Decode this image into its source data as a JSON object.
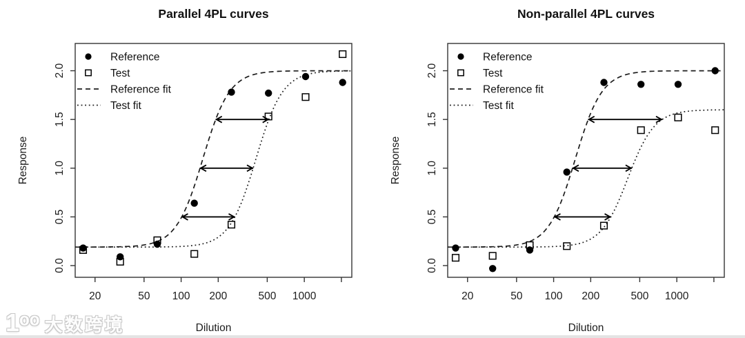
{
  "watermark": {
    "logo_text": "1ᵒᵒ",
    "brand_text": "大数跨境"
  },
  "chart_data": [
    {
      "type": "scatter",
      "title": "Parallel 4PL curves",
      "xlabel": "Dilution",
      "ylabel": "Response",
      "x_scale": "log10",
      "xlim": [
        13.8,
        2430
      ],
      "ylim": [
        -0.12,
        2.28
      ],
      "grid": false,
      "x_ticks": [
        {
          "value": 20,
          "label": "20"
        },
        {
          "value": 50,
          "label": "50"
        },
        {
          "value": 100,
          "label": "100"
        },
        {
          "value": 200,
          "label": "200"
        },
        {
          "value": 500,
          "label": "500"
        },
        {
          "value": 1000,
          "label": "1000"
        },
        {
          "value": 2000,
          "label": ""
        }
      ],
      "y_ticks": [
        {
          "value": 0,
          "label": "0.0"
        },
        {
          "value": 0.5,
          "label": "0.5"
        },
        {
          "value": 1,
          "label": "1.0"
        },
        {
          "value": 1.5,
          "label": "1.5"
        },
        {
          "value": 2,
          "label": "2.0"
        }
      ],
      "legend": {
        "position": "top-left",
        "entries": [
          {
            "label": "Reference",
            "symbol": "filled-circle"
          },
          {
            "label": "Test",
            "symbol": "open-square"
          },
          {
            "label": "Reference fit",
            "symbol": "dashed-line"
          },
          {
            "label": "Test fit",
            "symbol": "dotted-line"
          }
        ]
      },
      "series": [
        {
          "name": "Reference",
          "marker": "filled-circle",
          "points": [
            [
              16,
              0.18
            ],
            [
              32,
              0.09
            ],
            [
              64,
              0.22
            ],
            [
              128,
              0.64
            ],
            [
              256,
              1.78
            ],
            [
              512,
              1.77
            ],
            [
              1024,
              1.94
            ],
            [
              2048,
              1.88
            ]
          ]
        },
        {
          "name": "Test",
          "marker": "open-square",
          "points": [
            [
              16,
              0.16
            ],
            [
              32,
              0.04
            ],
            [
              64,
              0.26
            ],
            [
              128,
              0.12
            ],
            [
              256,
              0.42
            ],
            [
              512,
              1.53
            ],
            [
              1024,
              1.73
            ],
            [
              2048,
              2.17
            ]
          ]
        }
      ],
      "fit_curves": [
        {
          "name": "Reference fit",
          "line_style": "dashed",
          "model": "4PL",
          "bottom": 0.19,
          "top": 2.0,
          "ec50": 150,
          "hill": 4
        },
        {
          "name": "Test fit",
          "line_style": "dotted",
          "model": "4PL",
          "bottom": 0.19,
          "top": 2.0,
          "ec50": 405,
          "hill": 4
        }
      ],
      "shift_arrows_at_response": [
        0.5,
        1.0,
        1.5
      ],
      "colors": {
        "foreground": "#000000",
        "background": "#ffffff"
      }
    },
    {
      "type": "scatter",
      "title": "Non-parallel 4PL curves",
      "xlabel": "Dilution",
      "ylabel": "Response",
      "x_scale": "log10",
      "xlim": [
        13.8,
        2430
      ],
      "ylim": [
        -0.12,
        2.28
      ],
      "grid": false,
      "x_ticks": [
        {
          "value": 20,
          "label": "20"
        },
        {
          "value": 50,
          "label": "50"
        },
        {
          "value": 100,
          "label": "100"
        },
        {
          "value": 200,
          "label": "200"
        },
        {
          "value": 500,
          "label": "500"
        },
        {
          "value": 1000,
          "label": "1000"
        },
        {
          "value": 2000,
          "label": ""
        }
      ],
      "y_ticks": [
        {
          "value": 0,
          "label": "0.0"
        },
        {
          "value": 0.5,
          "label": "0.5"
        },
        {
          "value": 1,
          "label": "1.0"
        },
        {
          "value": 1.5,
          "label": "1.5"
        },
        {
          "value": 2,
          "label": "2.0"
        }
      ],
      "legend": {
        "position": "top-left",
        "entries": [
          {
            "label": "Reference",
            "symbol": "filled-circle"
          },
          {
            "label": "Test",
            "symbol": "open-square"
          },
          {
            "label": "Reference fit",
            "symbol": "dashed-line"
          },
          {
            "label": "Test fit",
            "symbol": "dotted-line"
          }
        ]
      },
      "series": [
        {
          "name": "Reference",
          "marker": "filled-circle",
          "points": [
            [
              16,
              0.18
            ],
            [
              32,
              -0.03
            ],
            [
              64,
              0.16
            ],
            [
              128,
              0.96
            ],
            [
              256,
              1.88
            ],
            [
              512,
              1.86
            ],
            [
              1024,
              1.86
            ],
            [
              2048,
              2.0
            ]
          ]
        },
        {
          "name": "Test",
          "marker": "open-square",
          "points": [
            [
              16,
              0.08
            ],
            [
              32,
              0.1
            ],
            [
              64,
              0.21
            ],
            [
              128,
              0.2
            ],
            [
              256,
              0.41
            ],
            [
              512,
              1.39
            ],
            [
              1024,
              1.52
            ],
            [
              2048,
              1.39
            ]
          ]
        }
      ],
      "fit_curves": [
        {
          "name": "Reference fit",
          "line_style": "dashed",
          "model": "4PL",
          "bottom": 0.19,
          "top": 2.0,
          "ec50": 150,
          "hill": 4
        },
        {
          "name": "Test fit",
          "line_style": "dotted",
          "model": "4PL",
          "bottom": 0.19,
          "top": 1.6,
          "ec50": 400,
          "hill": 4
        }
      ],
      "shift_arrows_at_response": [
        0.5,
        1.0,
        1.5
      ],
      "colors": {
        "foreground": "#000000",
        "background": "#ffffff"
      }
    }
  ]
}
